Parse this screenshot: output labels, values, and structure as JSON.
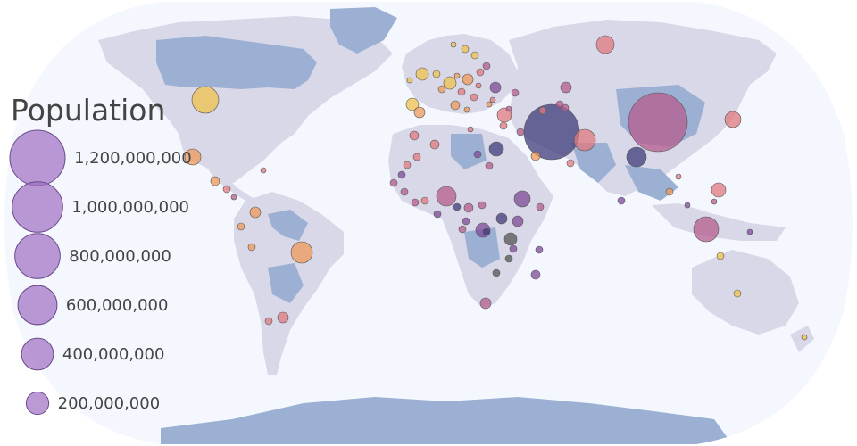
{
  "legend": {
    "title": "Population",
    "items": [
      {
        "label": "1,200,000,000",
        "value": 1200000000
      },
      {
        "label": "1,000,000,000",
        "value": 1000000000
      },
      {
        "label": "800,000,000",
        "value": 800000000
      },
      {
        "label": "600,000,000",
        "value": 600000000
      },
      {
        "label": "400,000,000",
        "value": 400000000
      },
      {
        "label": "200,000,000",
        "value": 200000000
      }
    ],
    "bubble_color": "#a06ec3"
  },
  "colors": {
    "ocean": "#f4f7fd",
    "land": "#d8d8e8",
    "water": "#9bb0d2",
    "bubble_palette": [
      "#f0c14b",
      "#ef9a5a",
      "#e0797d",
      "#b55d8f",
      "#7c4b97",
      "#3f3c7a",
      "#555555"
    ]
  },
  "map": {
    "projection": "natural-earth"
  }
}
